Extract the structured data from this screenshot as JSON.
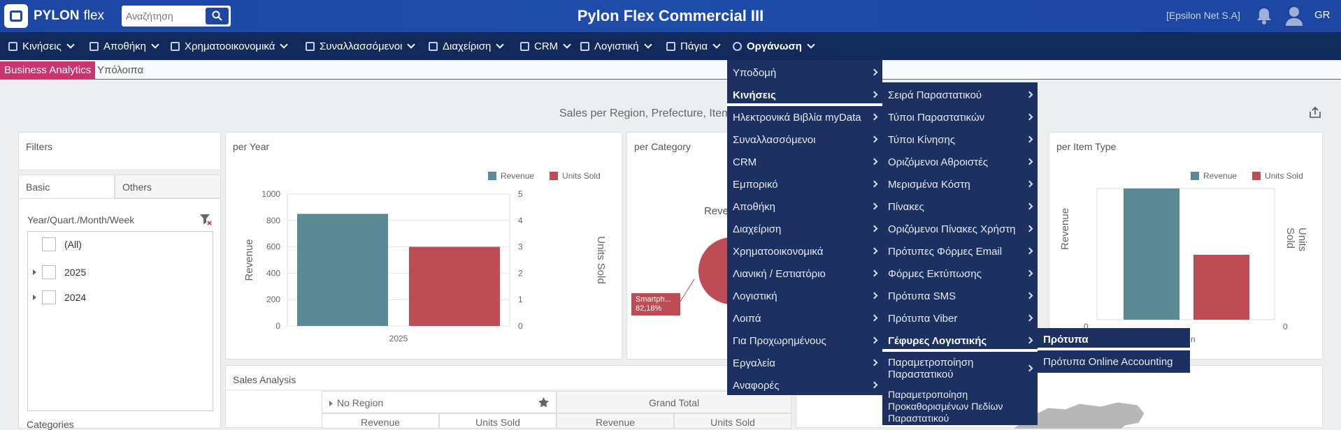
{
  "header": {
    "brand": "PYLON",
    "brand_suffix": "flex",
    "search_placeholder": "Αναζήτηση",
    "title": "Pylon Flex Commercial III",
    "company": "[Epsilon Net S.A]",
    "lang": "GR"
  },
  "nav": [
    {
      "label": "Κινήσεις",
      "icon": "list-icon"
    },
    {
      "label": "Αποθήκη",
      "icon": "warehouse-icon"
    },
    {
      "label": "Χρηματοοικονομικά",
      "icon": "coins-icon"
    },
    {
      "label": "Συναλλασσόμενοι",
      "icon": "handshake-icon"
    },
    {
      "label": "Διαχείριση",
      "icon": "book-icon"
    },
    {
      "label": "CRM",
      "icon": "crm-icon"
    },
    {
      "label": "Λογιστική",
      "icon": "ledger-icon"
    },
    {
      "label": "Πάγια",
      "icon": "truck-icon"
    },
    {
      "label": "Οργάνωση",
      "icon": "gear-icon"
    }
  ],
  "subtabs": {
    "active": "Business Analytics",
    "other": "Υπόλοιπα"
  },
  "report": {
    "title": "Sales per Region, Prefecture, Item"
  },
  "filters": {
    "title": "Filters",
    "tab_basic": "Basic",
    "tab_others": "Others",
    "field_label": "Year/Quart./Month/Week",
    "items": [
      "(All)",
      "2025",
      "2024"
    ],
    "category_label": "Categories"
  },
  "per_year": {
    "title": "per Year",
    "legend": [
      "Revenue",
      "Units Sold"
    ],
    "ylabel": "Revenue",
    "y2label": "Units Sold",
    "colors": {
      "revenue": "#5b8a94",
      "units": "#bd4c55"
    }
  },
  "per_category": {
    "title": "per Category",
    "center_label": "Reve",
    "slice_label": "Smartph...",
    "slice_pct": "82,18%"
  },
  "per_item_type": {
    "title": "per Item Type",
    "legend": [
      "Revenue",
      "Units Sold"
    ],
    "ylabel": "Revenue",
    "y2label": "Units Sold",
    "ytick_left": "0",
    "ytick_right": "0",
    "xlabel_fragment": "n"
  },
  "sales_analysis": {
    "title": "Sales Analysis",
    "col_region": "No Region",
    "col_grand_total": "Grand Total",
    "sub_revenue": "Revenue",
    "sub_units": "Units Sold"
  },
  "menu_level1": [
    "Υποδομή",
    "Κινήσεις",
    "Ηλεκτρονικά Βιβλία myData",
    "Συναλλασσόμενοι",
    "CRM",
    "Εμπορικό",
    "Αποθήκη",
    "Διαχείριση",
    "Χρηματοοικονομικά",
    "Λιανική / Εστιατόριο",
    "Λογιστική",
    "Λοιπά",
    "Για Προχωρημένους",
    "Εργαλεία",
    "Αναφορές"
  ],
  "menu_level2": [
    "Σειρά Παραστατικού",
    "Τύποι Παραστατικών",
    "Τύποι Κίνησης",
    "Οριζόμενοι Αθροιστές",
    "Μερισμένα Κόστη",
    "Πίνακες",
    "Οριζόμενοι Πίνακες Χρήστη",
    "Πρότυπες Φόρμες Email",
    "Φόρμες Εκτύπωσης",
    "Πρότυπα SMS",
    "Πρότυπα Viber",
    "Γέφυρες Λογιστικής",
    "Παραμετροποίηση Παραστατικού",
    "Παραμετροποίηση Προκαθορισμένων Πεδίων Παραστατικού"
  ],
  "menu_level3": [
    "Πρότυπα",
    "Πρότυπα Online Accounting"
  ],
  "chart_data": [
    {
      "type": "bar",
      "title": "per Year",
      "categories": [
        "2025"
      ],
      "series": [
        {
          "name": "Revenue",
          "values": [
            850
          ],
          "axis": "left"
        },
        {
          "name": "Units Sold",
          "values": [
            3
          ],
          "axis": "right"
        }
      ],
      "ylabel": "Revenue",
      "y2label": "Units Sold",
      "ylim": [
        0,
        1000
      ],
      "y2lim": [
        0,
        5
      ],
      "yticks": [
        0,
        200,
        400,
        600,
        800,
        1000
      ],
      "y2ticks": [
        0,
        1,
        2,
        3,
        4,
        5
      ],
      "legend": "top-right",
      "grid": true
    }
  ]
}
